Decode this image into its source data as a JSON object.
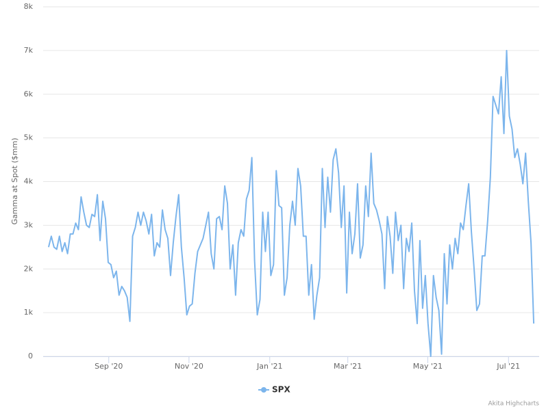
{
  "chart_data": {
    "type": "line",
    "y_label": "Gamma at Spot ($mm)",
    "credit": "Akita Highcharts",
    "categories": [
      null,
      null,
      null,
      null,
      null,
      null,
      null,
      null,
      null,
      null,
      null,
      null,
      null,
      null,
      null,
      null,
      null,
      null,
      null,
      null,
      null,
      null,
      null,
      null,
      null,
      null,
      null,
      null,
      null,
      null,
      null,
      null,
      null,
      null,
      null,
      null,
      null,
      null,
      null,
      null,
      null,
      null,
      null,
      null,
      null,
      null,
      null,
      null,
      null,
      null,
      null,
      null,
      null,
      null,
      null,
      null,
      null,
      null,
      null,
      null,
      null,
      null,
      null,
      null,
      null,
      null,
      null,
      null,
      null,
      null,
      null,
      null,
      null,
      null,
      null,
      null,
      null,
      null,
      null,
      null,
      null,
      null,
      null,
      null,
      null,
      null,
      null,
      null,
      null,
      null,
      null,
      null,
      null,
      null,
      null,
      null,
      null,
      null,
      null,
      null,
      null,
      null,
      null,
      null,
      null,
      null,
      null,
      null,
      null,
      null,
      null,
      null,
      null,
      null,
      null,
      null,
      null,
      null,
      null,
      null,
      null,
      null,
      null,
      null,
      null,
      null,
      null,
      null,
      null,
      null,
      null,
      null,
      null,
      null,
      null,
      null,
      null,
      null,
      null,
      null,
      null,
      null,
      null,
      null,
      null,
      null,
      null,
      null,
      null,
      null,
      null,
      null,
      null,
      null,
      null,
      null,
      null,
      null,
      null,
      null,
      null,
      null,
      null,
      null,
      null,
      null,
      null,
      null,
      null,
      null,
      null,
      null,
      null,
      null,
      null,
      null,
      null,
      null,
      null,
      null
    ],
    "series": [
      {
        "name": "SPX",
        "color": "#7cb5ec",
        "values": [
          2500,
          2750,
          2500,
          2450,
          2750,
          2400,
          2600,
          2350,
          2800,
          2800,
          3050,
          2900,
          3650,
          3300,
          3000,
          2950,
          3250,
          3200,
          3700,
          2650,
          3550,
          3150,
          2150,
          2100,
          1800,
          1950,
          1400,
          1600,
          1500,
          1350,
          800,
          2750,
          2950,
          3300,
          3000,
          3300,
          3100,
          2800,
          3250,
          2300,
          2600,
          2500,
          3350,
          2900,
          2700,
          1850,
          2600,
          3200,
          3700,
          2500,
          1800,
          950,
          1150,
          1200,
          1900,
          2400,
          2550,
          2700,
          3000,
          3300,
          2350,
          2000,
          3150,
          3200,
          2900,
          3900,
          3500,
          2000,
          2550,
          1400,
          2600,
          2900,
          2750,
          3600,
          3800,
          4550,
          2200,
          950,
          1300,
          3300,
          2400,
          3300,
          1850,
          2100,
          4250,
          3450,
          3400,
          1400,
          1800,
          3000,
          3550,
          3000,
          4300,
          3900,
          2750,
          2750,
          1400,
          2100,
          850,
          1400,
          1800,
          4300,
          2950,
          4100,
          3300,
          4500,
          4750,
          4200,
          2950,
          3900,
          1450,
          3300,
          2350,
          2800,
          3950,
          2250,
          2550,
          3900,
          3200,
          4650,
          3500,
          3350,
          3100,
          2800,
          1550,
          3200,
          2750,
          1900,
          3300,
          2650,
          3000,
          1550,
          2700,
          2400,
          3050,
          1500,
          750,
          2650,
          1100,
          1850,
          750,
          0,
          1850,
          1350,
          1050,
          50,
          2350,
          1200,
          2550,
          2000,
          2700,
          2350,
          3050,
          2900,
          3450,
          3950,
          2850,
          2000,
          1050,
          1200,
          2300,
          2300,
          3100,
          4100,
          5950,
          5750,
          5550,
          6400,
          5100,
          7000,
          5500,
          5200,
          4550,
          4750,
          4400,
          3950,
          4650,
          3550,
          2600,
          750
        ]
      }
    ],
    "xlim": [
      -2,
      181
    ],
    "xticks": [
      {
        "value": 22.2,
        "label": "Sep '20"
      },
      {
        "value": 51.8,
        "label": "Nov '20"
      },
      {
        "value": 81.6,
        "label": "Jan '21"
      },
      {
        "value": 110.4,
        "label": "Mar '21"
      },
      {
        "value": 139.9,
        "label": "May '21"
      },
      {
        "value": 169.7,
        "label": "Jul '21"
      }
    ],
    "ylim": [
      0,
      8000
    ],
    "yticks": [
      0,
      {
        "value": 1000,
        "label": "1k"
      },
      {
        "value": 2000,
        "label": "2k"
      },
      {
        "value": 3000,
        "label": "3k"
      },
      {
        "value": 4000,
        "label": "4k"
      },
      {
        "value": 5000,
        "label": "5k"
      },
      {
        "value": 6000,
        "label": "6k"
      },
      {
        "value": 7000,
        "label": "7k"
      },
      {
        "value": 8000,
        "label": "8k"
      }
    ],
    "grid": true,
    "legend": "bottom"
  }
}
